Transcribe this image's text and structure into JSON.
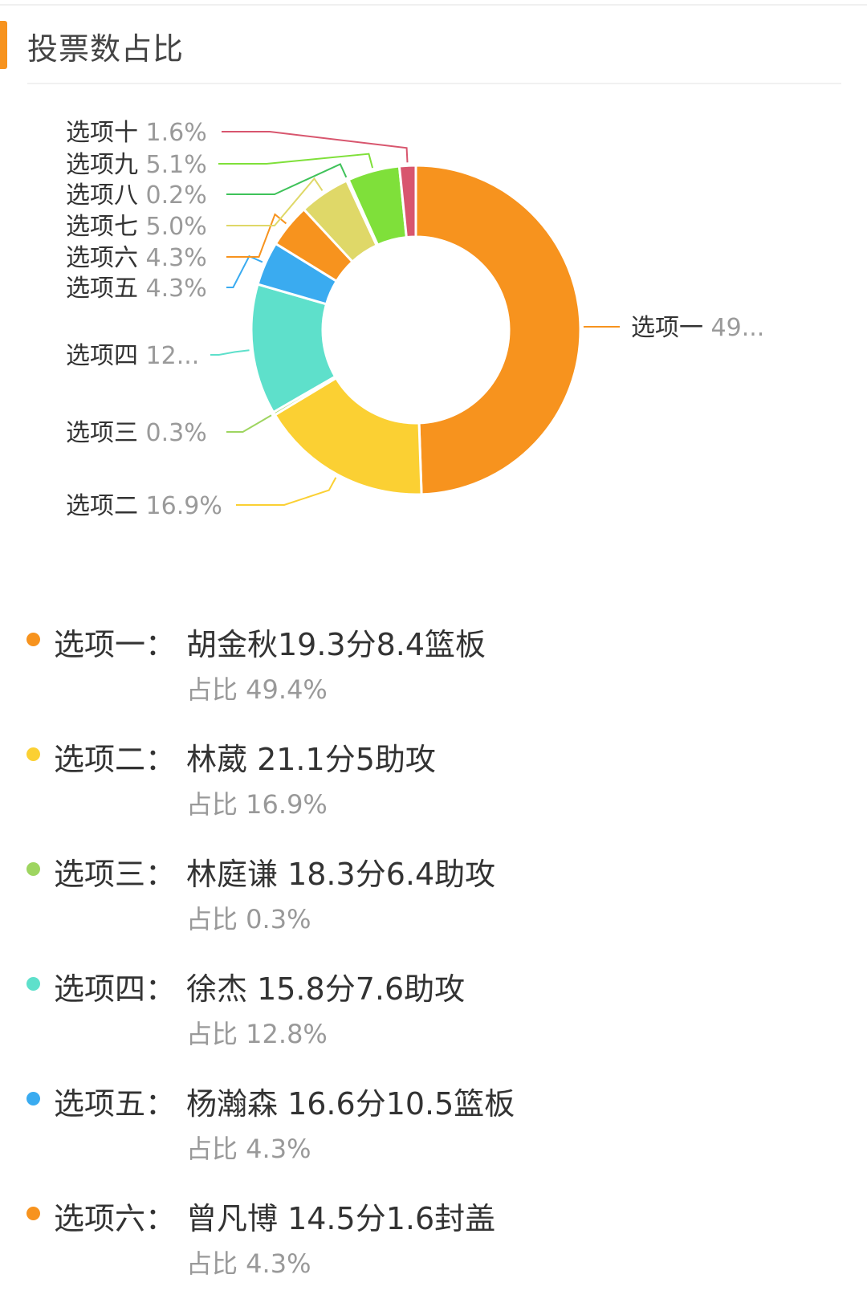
{
  "header": {
    "title": "投票数占比"
  },
  "chart_data": {
    "type": "pie",
    "donut": true,
    "slices": [
      {
        "label": "选项一",
        "value": 49.4,
        "display": "选项一 49...",
        "color": "#f7931e"
      },
      {
        "label": "选项二",
        "value": 16.9,
        "display": "选项二 16.9%",
        "color": "#fbd033"
      },
      {
        "label": "选项三",
        "value": 0.3,
        "display": "选项三 0.3%",
        "color": "#9ed560"
      },
      {
        "label": "选项四",
        "value": 12.8,
        "display": "选项四 12...",
        "color": "#5ee0cb"
      },
      {
        "label": "选项五",
        "value": 4.3,
        "display": "选项五 4.3%",
        "color": "#3aabf0"
      },
      {
        "label": "选项六",
        "value": 4.3,
        "display": "选项六 4.3%",
        "color": "#f7931e"
      },
      {
        "label": "选项七",
        "value": 5.0,
        "display": "选项七 5.0%",
        "color": "#dfd868"
      },
      {
        "label": "选项八",
        "value": 0.2,
        "display": "选项八 0.2%",
        "color": "#3fc25a"
      },
      {
        "label": "选项九",
        "value": 5.1,
        "display": "选项九 5.1%",
        "color": "#7fe03a"
      },
      {
        "label": "选项十",
        "value": 1.6,
        "display": "选项十 1.6%",
        "color": "#d8566e"
      }
    ]
  },
  "legend": [
    {
      "label": "选项一：",
      "desc": "胡金秋19.3分8.4篮板",
      "pct": "占比 49.4%",
      "color": "#f7931e"
    },
    {
      "label": "选项二：",
      "desc": "林葳 21.1分5助攻",
      "pct": "占比 16.9%",
      "color": "#fbd033"
    },
    {
      "label": "选项三：",
      "desc": "林庭谦 18.3分6.4助攻",
      "pct": "占比 0.3%",
      "color": "#9ed560"
    },
    {
      "label": "选项四：",
      "desc": "徐杰 15.8分7.6助攻",
      "pct": "占比 12.8%",
      "color": "#5ee0cb"
    },
    {
      "label": "选项五：",
      "desc": "杨瀚森 16.6分10.5篮板",
      "pct": "占比 4.3%",
      "color": "#3aabf0"
    },
    {
      "label": "选项六：",
      "desc": "曾凡博 14.5分1.6封盖",
      "pct": "占比 4.3%",
      "color": "#f7931e"
    }
  ]
}
